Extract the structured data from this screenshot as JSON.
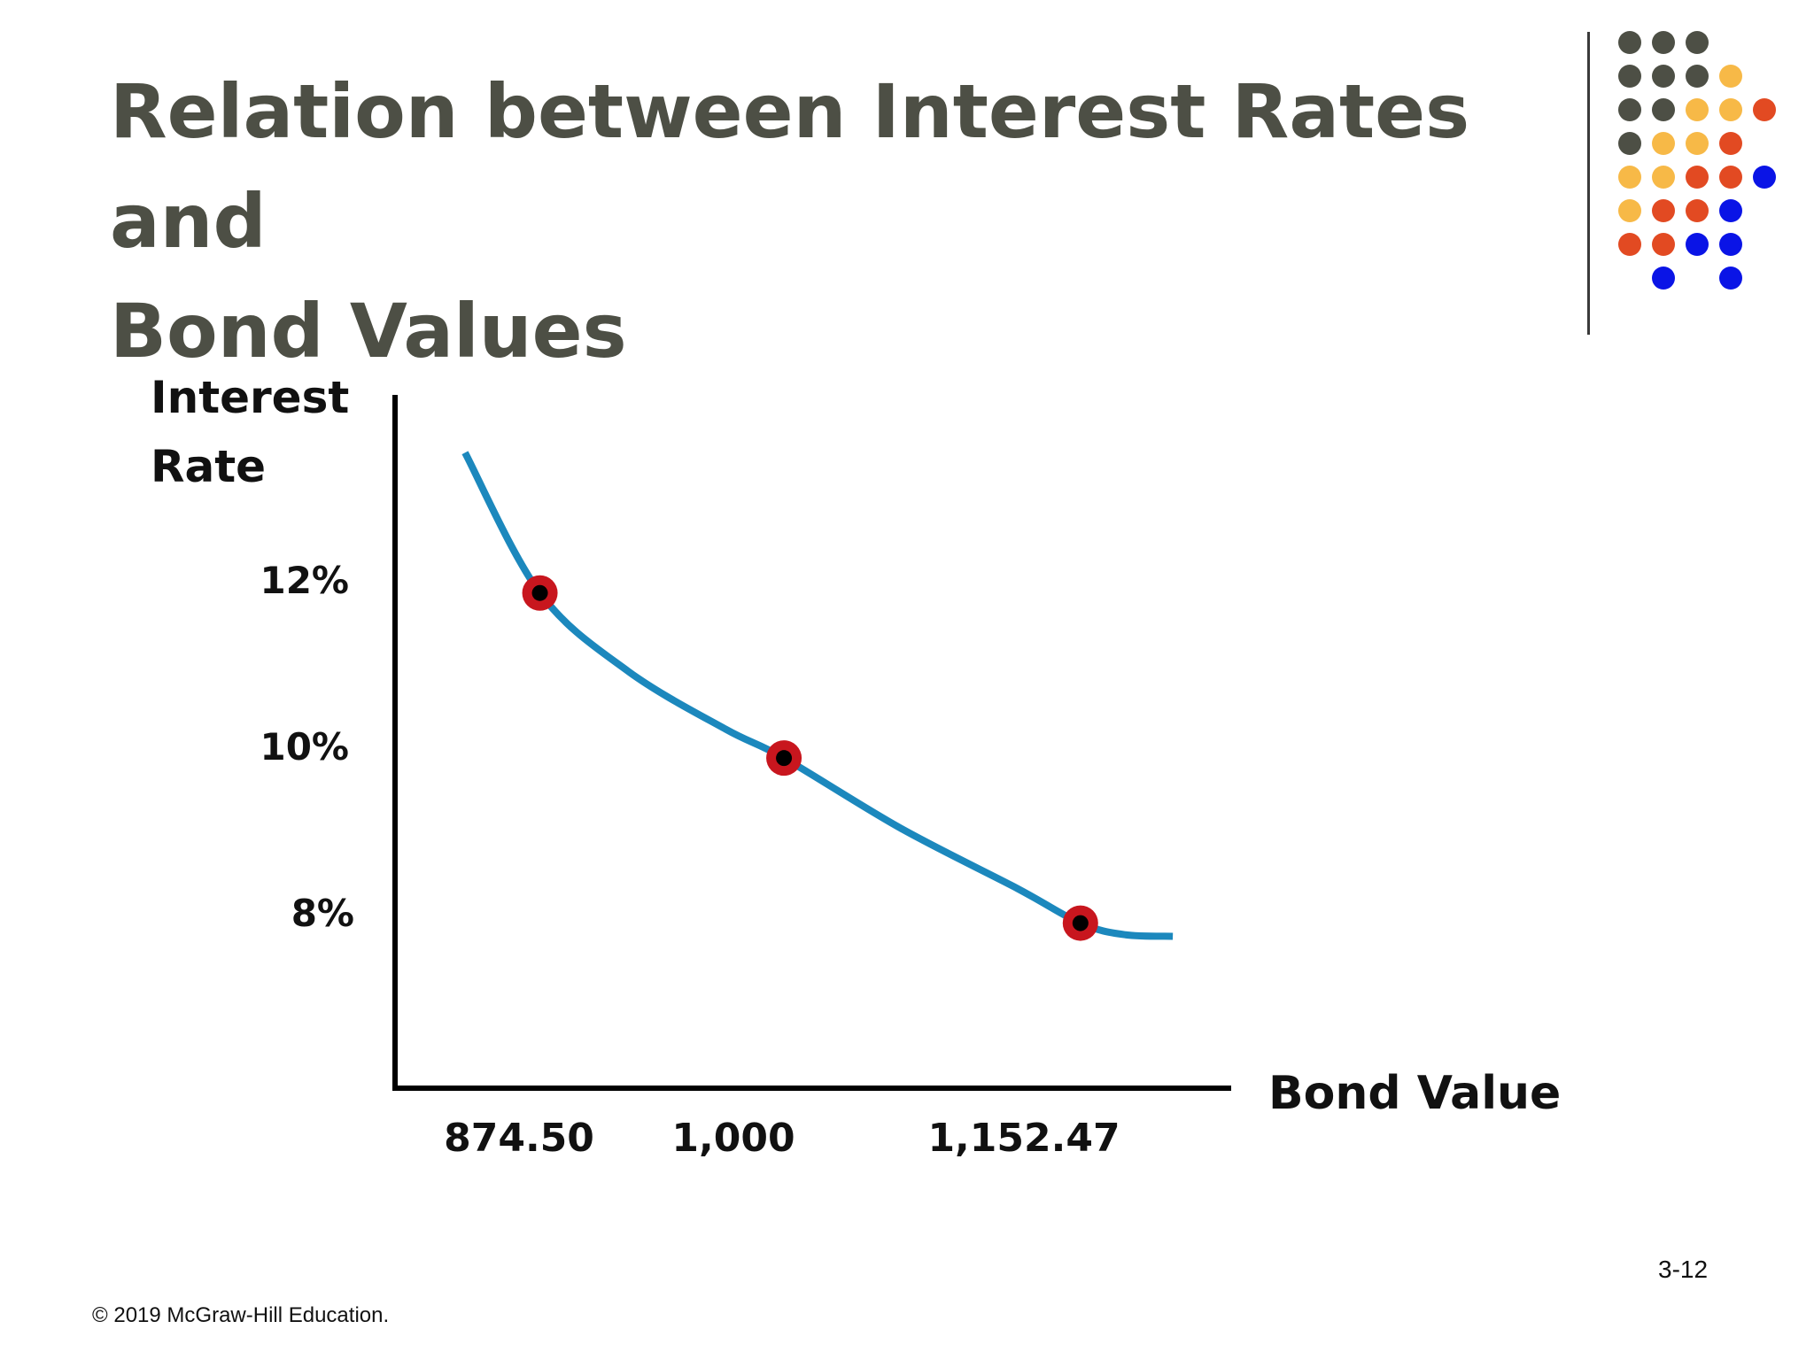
{
  "slide": {
    "title_line1": "Relation between Interest Rates and",
    "title_line2": "Bond Values",
    "footer": "© 2019 McGraw-Hill Education.",
    "page_number": "3-12"
  },
  "decoration": {
    "dot_colors": {
      "gray": "#4d4f45",
      "yellow": "#f7b947",
      "orange": "#e24a22",
      "blue": "#0a14e6"
    },
    "dot_grid": [
      [
        "gray",
        "gray",
        "gray",
        null,
        null
      ],
      [
        "gray",
        "gray",
        "gray",
        "yellow",
        null
      ],
      [
        "gray",
        "gray",
        "yellow",
        "yellow",
        "orange"
      ],
      [
        "gray",
        "yellow",
        "yellow",
        "orange",
        null
      ],
      [
        "yellow",
        "yellow",
        "orange",
        "orange",
        "blue"
      ],
      [
        "yellow",
        "orange",
        "orange",
        "blue",
        null
      ],
      [
        "orange",
        "orange",
        "blue",
        "blue",
        null
      ],
      [
        null,
        "blue",
        null,
        "blue",
        null
      ]
    ]
  },
  "chart_data": {
    "type": "line",
    "title": "",
    "xlabel": "Bond Value",
    "ylabel_line1": "Interest",
    "ylabel_line2": "Rate",
    "x_tick_labels": [
      "874.50",
      "1,000",
      "1,152.47"
    ],
    "y_tick_labels": [
      "8%",
      "10%",
      "12%"
    ],
    "xlim": [
      800,
      1230
    ],
    "ylim": [
      6,
      14.4
    ],
    "grid": false,
    "legend": "none",
    "colors": {
      "curve": "#1c88bd",
      "marker_ring": "#c8161e",
      "marker_center": "#000000",
      "axis": "#000000"
    },
    "series": [
      {
        "curve": true,
        "x": [
          836,
          874.5,
          920,
          970,
          1000,
          1060,
          1120,
          1152.47,
          1175,
          1200
        ],
        "y": [
          13.7,
          12,
          11.05,
          10.35,
          10,
          9.15,
          8.42,
          8,
          7.86,
          7.84
        ]
      },
      {
        "markers": true,
        "x": [
          874.5,
          1000,
          1152.47
        ],
        "y": [
          12,
          10,
          8
        ]
      }
    ]
  }
}
